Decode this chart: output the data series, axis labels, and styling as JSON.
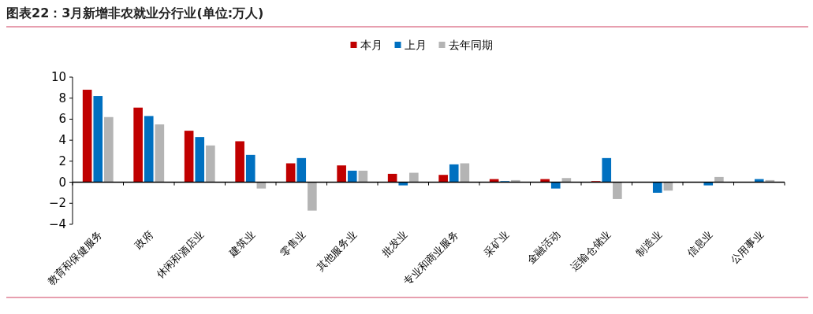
{
  "chart_data": {
    "type": "bar",
    "title": "图表22：3月新增非农就业分行业(单位:万人)",
    "categories": [
      "教育和保健服务",
      "政府",
      "休闲和酒店业",
      "建筑业",
      "零售业",
      "其他服务业",
      "批发业",
      "专业和商业服务",
      "采矿业",
      "金融活动",
      "运输仓储业",
      "制造业",
      "信息业",
      "公用事业"
    ],
    "series": [
      {
        "name": "本月",
        "color": "#c00000",
        "values": [
          8.8,
          7.1,
          4.9,
          3.9,
          1.8,
          1.6,
          0.8,
          0.7,
          0.3,
          0.3,
          0.1,
          0,
          0,
          0
        ]
      },
      {
        "name": "上月",
        "color": "#0070c0",
        "values": [
          8.2,
          6.3,
          4.3,
          2.6,
          2.3,
          1.1,
          -0.3,
          1.7,
          0.1,
          -0.6,
          2.3,
          -1.0,
          -0.3,
          0.3
        ]
      },
      {
        "name": "去年同期",
        "color": "#b4b4b4",
        "values": [
          6.2,
          5.5,
          3.5,
          -0.6,
          -2.7,
          1.1,
          0.9,
          1.8,
          0.2,
          0.4,
          -1.6,
          -0.8,
          0.5,
          0.2
        ]
      }
    ],
    "ylim": [
      -4,
      10
    ],
    "yticks": [
      -4,
      -2,
      0,
      2,
      4,
      6,
      8,
      10
    ],
    "legend": "top"
  }
}
